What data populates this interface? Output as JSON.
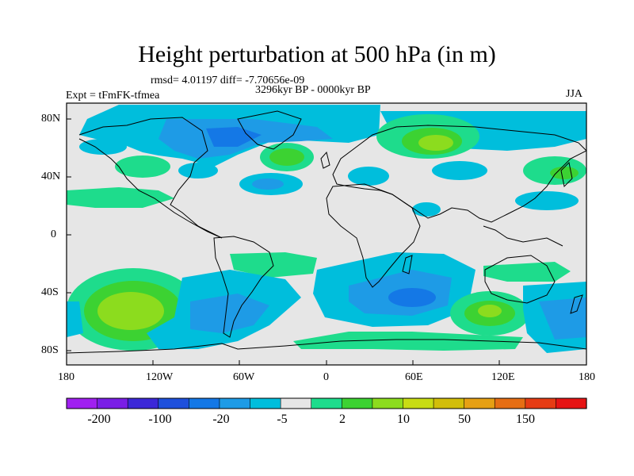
{
  "title": "Height perturbation at 500 hPa (in m)",
  "stats": "rmsd= 4.01197 diff= -7.70656e-09",
  "period": "3296kyr BP - 0000kyr BP",
  "experiment": "Expt = tFmFK-tfmea",
  "season": "JJA",
  "lat_ticks": [
    "80N",
    "40N",
    "0",
    "40S",
    "80S"
  ],
  "lon_ticks": [
    "180",
    "120W",
    "60W",
    "0",
    "60E",
    "120E",
    "180"
  ],
  "colorbar": {
    "colors": [
      "#a020f0",
      "#7a1ee6",
      "#3c28d8",
      "#1e50dc",
      "#1478e6",
      "#1e9be6",
      "#00bedc",
      "#e6e6e6",
      "#1edc8c",
      "#3cd232",
      "#8cdc1e",
      "#c8dc14",
      "#d2be0a",
      "#e6a014",
      "#e66e14",
      "#e63c14",
      "#e61414"
    ],
    "labels": [
      "-200",
      "-100",
      "-20",
      "-5",
      "2",
      "10",
      "50",
      "150"
    ]
  },
  "colors": {
    "background": "#e6e6e6",
    "neg1": "#00bedc",
    "neg2": "#1e9be6",
    "neg3": "#1478e6",
    "pos1": "#1edc8c",
    "pos2": "#3cd232",
    "pos3": "#8cdc1e"
  }
}
